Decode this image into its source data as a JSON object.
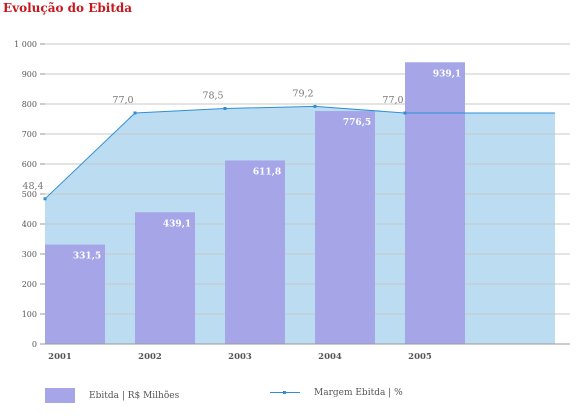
{
  "chart_data": {
    "type": "bar",
    "title": "Evolução do Ebitda",
    "categories": [
      "2001",
      "2002",
      "2003",
      "2004",
      "2005"
    ],
    "ylim": [
      0,
      1000
    ],
    "yticks": [
      0,
      100,
      200,
      300,
      400,
      500,
      600,
      700,
      800,
      900,
      1000
    ],
    "ytick_labels": [
      "0",
      "100",
      "200",
      "300",
      "400",
      "500",
      "600",
      "700",
      "800",
      "900",
      "1 000"
    ],
    "grid": true,
    "legend_position": "bottom",
    "series": [
      {
        "name": "Ebitda | R$ Milhões",
        "type": "bar",
        "values": [
          331.5,
          439.1,
          611.8,
          776.5,
          939.1
        ],
        "labels": [
          "331,5",
          "439,1",
          "611,8",
          "776,5",
          "939,1"
        ],
        "color": "#a5a5e8"
      },
      {
        "name": "Margem Ebitda | %",
        "type": "area",
        "values": [
          48.4,
          77.0,
          78.5,
          79.2,
          77.0
        ],
        "labels": [
          "48,4",
          "77,0",
          "78,5",
          "79,2",
          "77,0"
        ],
        "color": "#2e8fd6",
        "fill": "#bcdcf2"
      }
    ]
  }
}
